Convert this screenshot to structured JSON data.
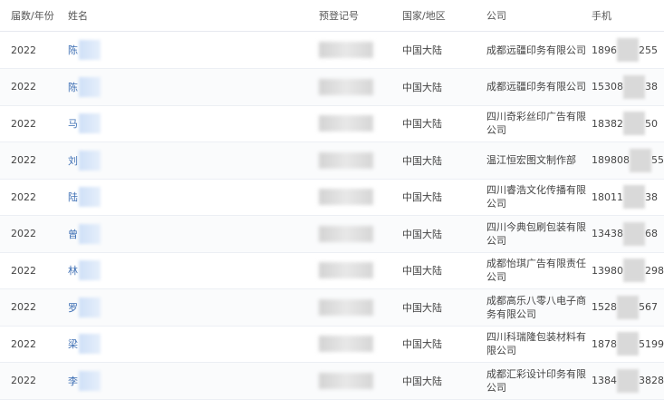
{
  "table": {
    "columns": [
      "届数/年份",
      "姓名",
      "预登记号",
      "国家/地区",
      "公司",
      "手机"
    ],
    "rows": [
      {
        "year": "2022",
        "name": "陈",
        "country": "中国大陆",
        "company": "成都远疆印务有限公司",
        "phone_start": "1896",
        "phone_end": "255"
      },
      {
        "year": "2022",
        "name": "陈",
        "country": "中国大陆",
        "company": "成都远疆印务有限公司",
        "phone_start": "15308",
        "phone_end": "38"
      },
      {
        "year": "2022",
        "name": "马",
        "country": "中国大陆",
        "company": "四川奇彩丝印广告有限公司",
        "phone_start": "18382",
        "phone_end": "50"
      },
      {
        "year": "2022",
        "name": "刘",
        "country": "中国大陆",
        "company": "温江恒宏图文制作部",
        "phone_start": "189808",
        "phone_end": "55"
      },
      {
        "year": "2022",
        "name": "陆",
        "country": "中国大陆",
        "company": "四川睿浩文化传播有限公司",
        "phone_start": "18011",
        "phone_end": "38"
      },
      {
        "year": "2022",
        "name": "曾",
        "country": "中国大陆",
        "company": "四川今典包刷包装有限公司",
        "phone_start": "13438",
        "phone_end": "68"
      },
      {
        "year": "2022",
        "name": "林",
        "country": "中国大陆",
        "company": "成都怡琪广告有限责任公司",
        "phone_start": "13980",
        "phone_end": "298"
      },
      {
        "year": "2022",
        "name": "罗",
        "country": "中国大陆",
        "company": "成都高乐八零八电子商务有限公司",
        "phone_start": "1528",
        "phone_end": "567"
      },
      {
        "year": "2022",
        "name": "梁",
        "country": "中国大陆",
        "company": "四川科瑞隆包装材料有限公司",
        "phone_start": "1878",
        "phone_end": "5199"
      },
      {
        "year": "2022",
        "name": "李",
        "country": "中国大陆",
        "company": "成都汇彩设计印务有限公司",
        "phone_start": "1384",
        "phone_end": "3828"
      }
    ]
  }
}
